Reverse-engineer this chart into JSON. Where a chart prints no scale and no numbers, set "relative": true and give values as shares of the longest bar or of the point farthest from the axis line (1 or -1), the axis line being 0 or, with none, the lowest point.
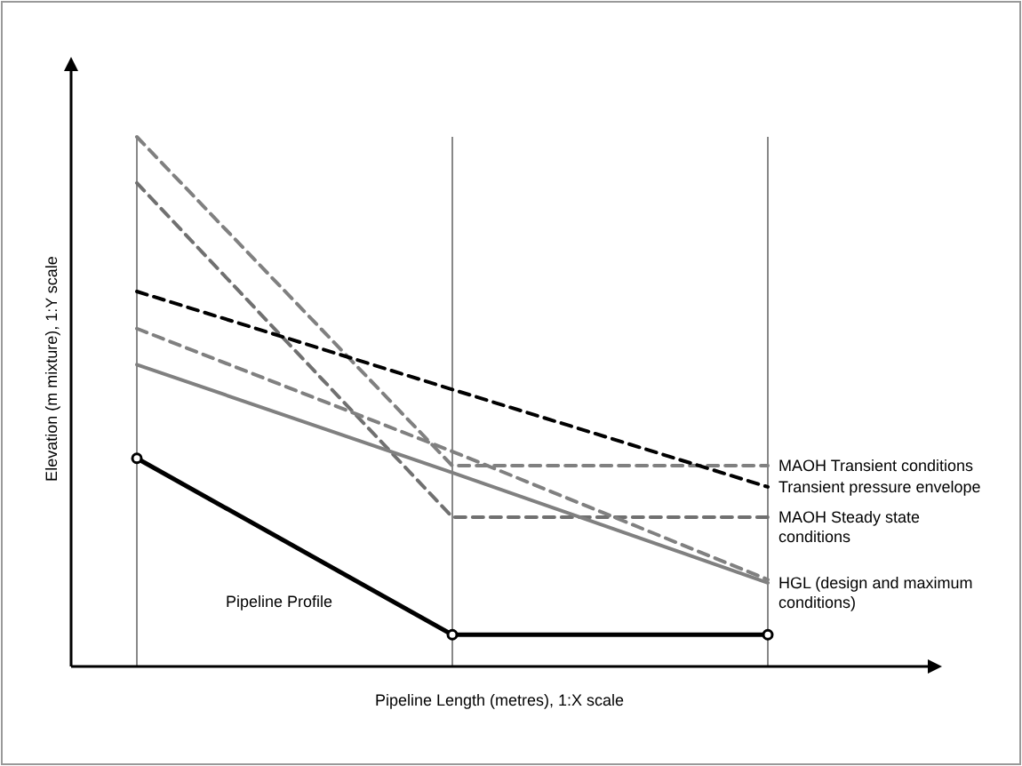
{
  "chart_data": {
    "type": "line",
    "relative": true,
    "xlabel": "Pipeline Length (metres), 1:X scale",
    "ylabel": "Elevation (m mixture), 1:Y scale",
    "categories": [
      null,
      null,
      null
    ],
    "grid": "x",
    "series": [
      {
        "name": "MAOH Transient conditions",
        "color": "#808080",
        "values": [
          1,
          0.379,
          0.379
        ],
        "line_style": "dashed",
        "marker": "none"
      },
      {
        "name": "MAOH Steady state conditions",
        "color": "#707070",
        "values": [
          0.913,
          0.282,
          0.282
        ],
        "line_style": "dashed",
        "marker": "none"
      },
      {
        "name": "Transient pressure envelope",
        "color": "#000000",
        "values": [
          0.708,
          0.523,
          0.339
        ],
        "line_style": "dashed",
        "marker": "none"
      },
      {
        "color": "#808080",
        "values": [
          0.638,
          0.406,
          0.164
        ],
        "line_style": "dashed",
        "marker": "none"
      },
      {
        "name": "HGL (design and maximum conditions)",
        "color": "#808080",
        "values": [
          0.57,
          0.366,
          0.158
        ],
        "line_style": "solid",
        "marker": "none"
      },
      {
        "name": "Pipeline Profile",
        "color": "#000000",
        "values": [
          0.393,
          0.06,
          0.06
        ],
        "line_style": "solid",
        "marker": "circle"
      }
    ]
  }
}
